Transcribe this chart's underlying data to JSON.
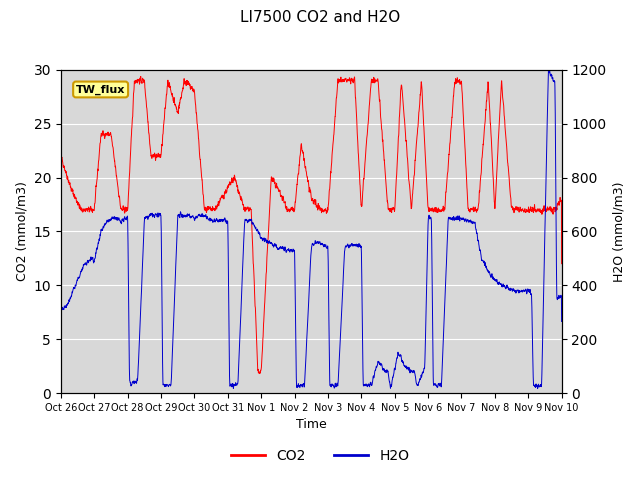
{
  "title": "LI7500 CO2 and H2O",
  "xlabel": "Time",
  "ylabel_left": "CO2 (mmol/m3)",
  "ylabel_right": "H2O (mmol/m3)",
  "ylim_left": [
    0,
    30
  ],
  "ylim_right": [
    0,
    1200
  ],
  "xtick_labels": [
    "Oct 26",
    "Oct 27",
    "Oct 28",
    "Oct 29",
    "Oct 30",
    "Oct 31",
    "Nov 1",
    "Nov 2",
    "Nov 3",
    "Nov 4",
    "Nov 5",
    "Nov 6",
    "Nov 7",
    "Nov 8",
    "Nov 9",
    "Nov 10"
  ],
  "yticks_left": [
    0,
    5,
    10,
    15,
    20,
    25,
    30
  ],
  "yticks_right": [
    0,
    200,
    400,
    600,
    800,
    1000,
    1200
  ],
  "annotation_text": "TW_flux",
  "annotation_color": "#ffff99",
  "annotation_border": "#cc9900",
  "co2_color": "#ff0000",
  "h2o_color": "#0000cc",
  "background_color": "#d8d8d8",
  "legend_co2": "CO2",
  "legend_h2o": "H2O",
  "n_points": 3000,
  "seed": 42
}
